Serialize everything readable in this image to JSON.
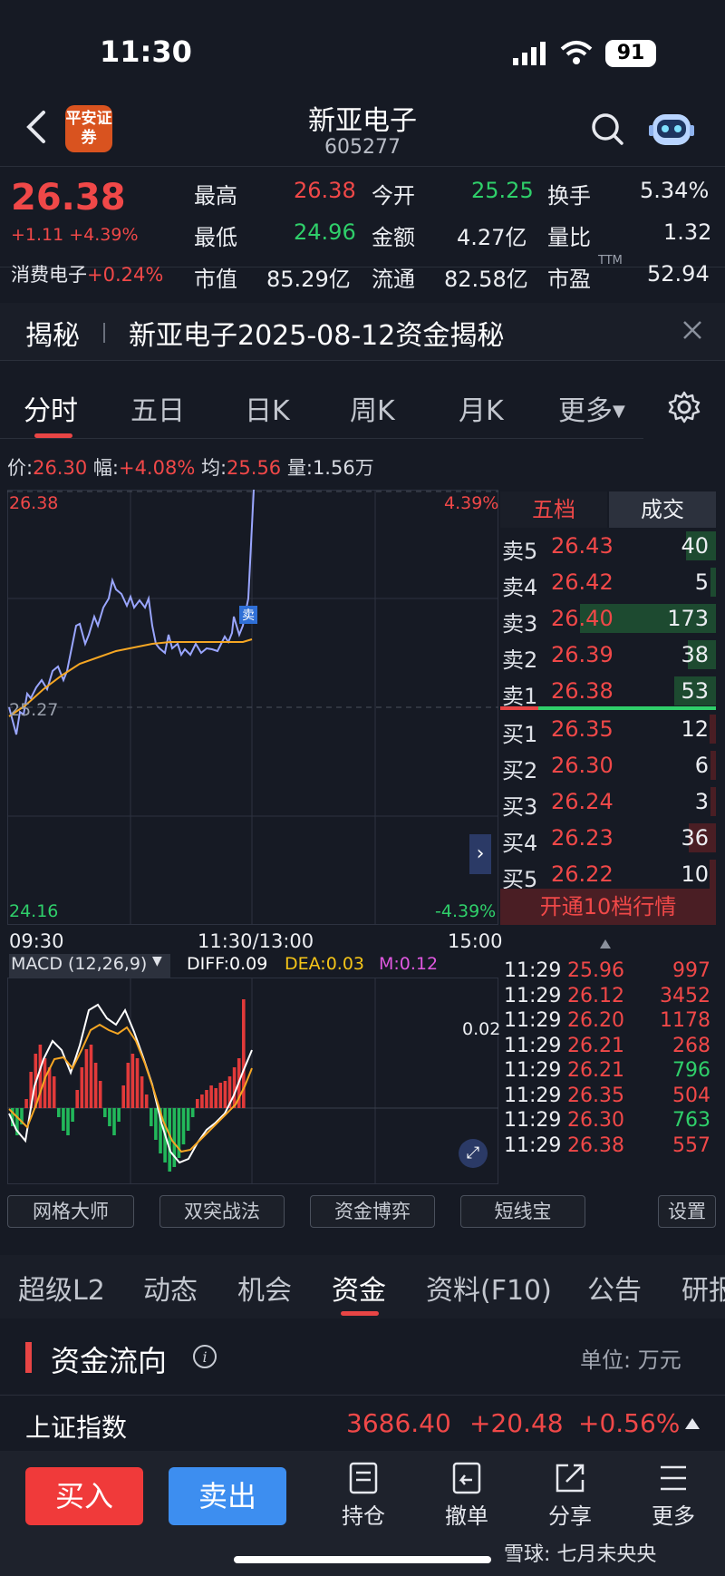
{
  "status_bar": {
    "time": "11:30",
    "battery": "91"
  },
  "header": {
    "broker_logo": "平安证券",
    "stock_name": "新亚电子",
    "stock_code": "605277"
  },
  "quote": {
    "price": "26.38",
    "change": "+1.11 +4.39%",
    "sector_name": "消费电子",
    "sector_change": "+0.24%",
    "high_label": "最高",
    "high": "26.38",
    "open_label": "今开",
    "open": "25.25",
    "turnover_label": "换手",
    "turnover": "5.34%",
    "low_label": "最低",
    "low": "24.96",
    "amount_label": "金额",
    "amount": "4.27亿",
    "vol_ratio_label": "量比",
    "vol_ratio": "1.32",
    "mktcap_label": "市值",
    "mktcap": "85.29亿",
    "float_label": "流通",
    "float": "82.58亿",
    "pe_label": "市盈",
    "pe_sup": "TTM",
    "pe": "52.94"
  },
  "notice": {
    "tag": "揭秘",
    "text": "新亚电子2025-08-12资金揭秘"
  },
  "chart_tabs": [
    "分时",
    "五日",
    "日K",
    "周K",
    "月K",
    "更多"
  ],
  "info_line": {
    "price_label": "价:",
    "price": "26.30",
    "amp_label": "幅:",
    "amp": "+4.08%",
    "avg_label": "均:",
    "avg": "25.56",
    "vol_label": "量:",
    "vol": "1.56万"
  },
  "chart": {
    "y_top": "26.38",
    "y_mid": "25.27",
    "y_bottom": "24.16",
    "pct_top": "4.39%",
    "pct_bottom": "-4.39%",
    "x_start": "09:30",
    "x_mid": "11:30/13:00",
    "x_end": "15:00",
    "sell_marker": "卖"
  },
  "macd": {
    "title": "MACD (12,26,9)",
    "diff": "DIFF:0.09",
    "dea": "DEA:0.03",
    "m": "M:0.12",
    "axis": "0.02"
  },
  "orderbook": {
    "tab_a": "五档",
    "tab_b": "成交",
    "asks": [
      {
        "label": "卖5",
        "price": "26.43",
        "vol": "40",
        "frac": 0.22
      },
      {
        "label": "卖4",
        "price": "26.42",
        "vol": "5",
        "frac": 0.03
      },
      {
        "label": "卖3",
        "price": "26.40",
        "vol": "173",
        "frac": 1.0
      },
      {
        "label": "卖2",
        "price": "26.39",
        "vol": "38",
        "frac": 0.21
      },
      {
        "label": "卖1",
        "price": "26.38",
        "vol": "53",
        "frac": 0.31
      }
    ],
    "bids": [
      {
        "label": "买1",
        "price": "26.35",
        "vol": "12",
        "frac": 0.05
      },
      {
        "label": "买2",
        "price": "26.30",
        "vol": "6",
        "frac": 0.03
      },
      {
        "label": "买3",
        "price": "26.24",
        "vol": "3",
        "frac": 0.02
      },
      {
        "label": "买4",
        "price": "26.23",
        "vol": "36",
        "frac": 0.2
      },
      {
        "label": "买5",
        "price": "26.22",
        "vol": "10",
        "frac": 0.05
      }
    ],
    "upgrade": "开通10档行情",
    "ticks": [
      {
        "time": "11:29",
        "price": "25.96",
        "vol": "997",
        "side": "buy"
      },
      {
        "time": "11:29",
        "price": "26.12",
        "vol": "3452",
        "side": "buy"
      },
      {
        "time": "11:29",
        "price": "26.20",
        "vol": "1178",
        "side": "buy"
      },
      {
        "time": "11:29",
        "price": "26.21",
        "vol": "268",
        "side": "buy"
      },
      {
        "time": "11:29",
        "price": "26.21",
        "vol": "796",
        "side": "sell"
      },
      {
        "time": "11:29",
        "price": "26.35",
        "vol": "504",
        "side": "buy"
      },
      {
        "time": "11:29",
        "price": "26.30",
        "vol": "763",
        "side": "sell"
      },
      {
        "time": "11:29",
        "price": "26.38",
        "vol": "557",
        "side": "buy"
      }
    ]
  },
  "tools": [
    "网格大师",
    "双突战法",
    "资金博弈",
    "短线宝",
    "设置"
  ],
  "bottom_tabs": [
    "超级L2",
    "动态",
    "机会",
    "资金",
    "资料(F10)",
    "公告",
    "研报"
  ],
  "capital_flow": {
    "title": "资金流向",
    "unit": "单位: 万元"
  },
  "index_row": {
    "name": "上证指数",
    "value": "3686.40",
    "change": "+20.48",
    "pct": "+0.56%"
  },
  "tradebar": {
    "buy": "买入",
    "sell": "卖出",
    "hold": "持仓",
    "cancel": "撤单",
    "share": "分享",
    "more": "更多"
  },
  "watermark": "雪球: 七月未央央",
  "colors": {
    "up": "#f04848",
    "down": "#2fcf6a",
    "price_line": "#9aa6ff",
    "avg_line": "#f5a623"
  }
}
